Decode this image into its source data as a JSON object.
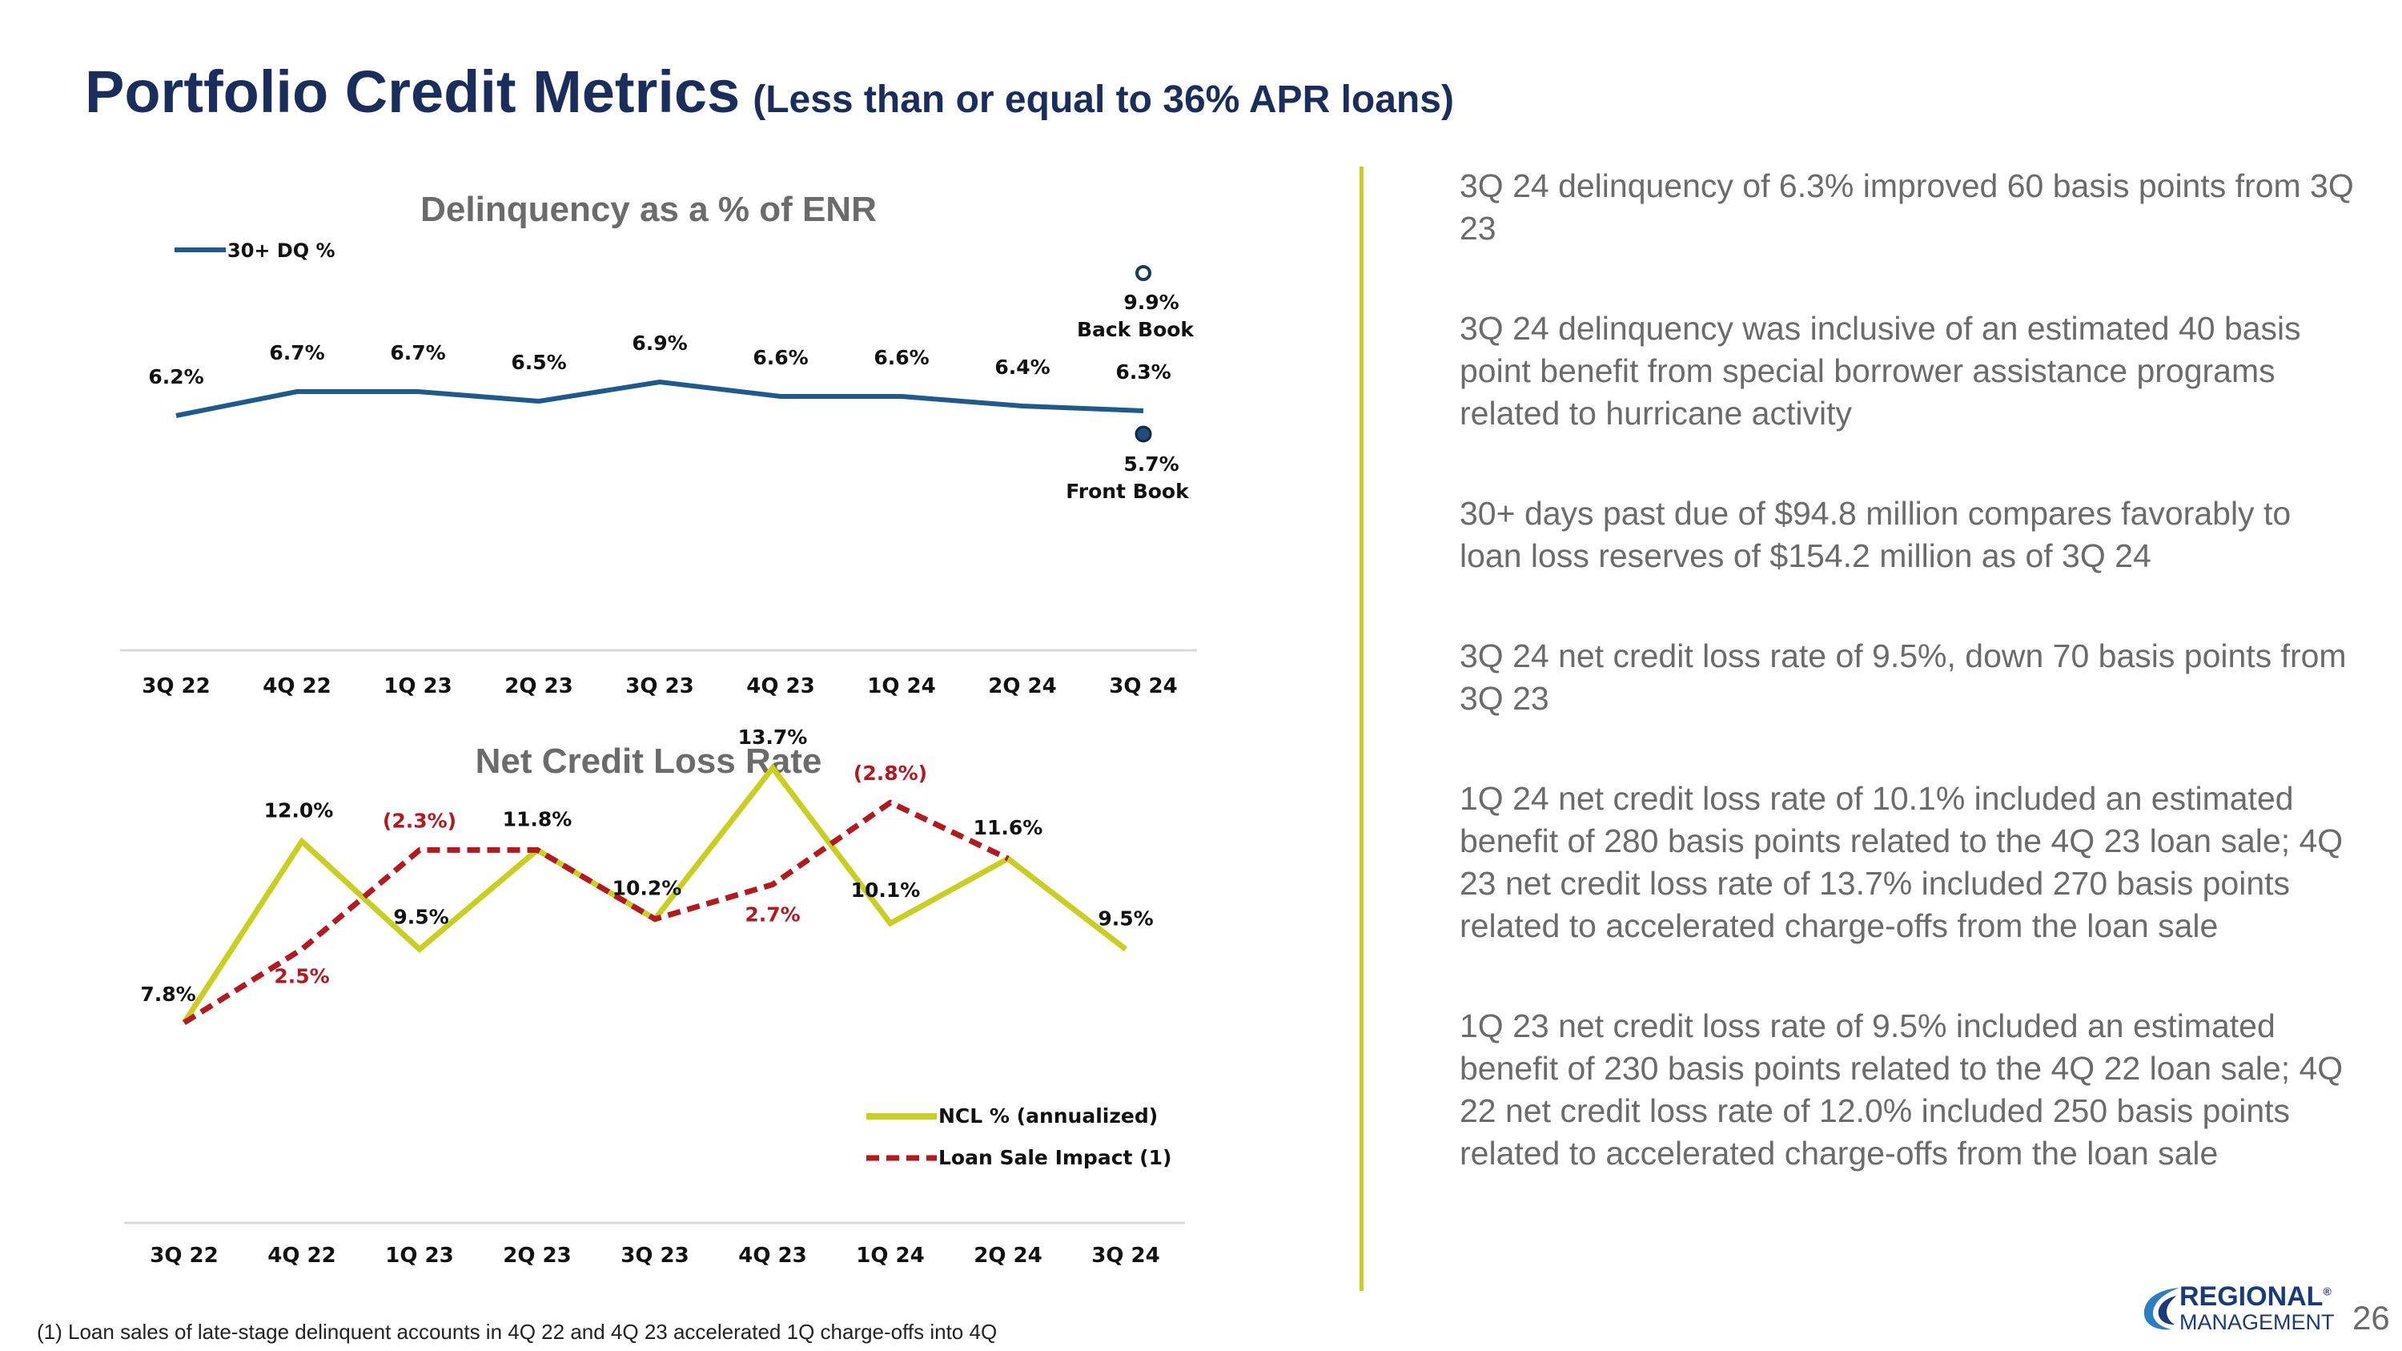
{
  "title": {
    "main": "Portfolio Credit Metrics",
    "sub": "(Less than or equal to 36% APR loans)"
  },
  "colors": {
    "navy": "#1b2d5b",
    "dq_line": "#1f5a8f",
    "ncl_line": "#c9cf1e",
    "loan_sale": "#b3191f",
    "divider": "#c9cf1e"
  },
  "chart_data": [
    {
      "type": "line",
      "title": "Delinquency as a % of ENR",
      "categories": [
        "3Q 22",
        "4Q 22",
        "1Q 23",
        "2Q 23",
        "3Q 23",
        "4Q 23",
        "1Q 24",
        "2Q 24",
        "3Q 24"
      ],
      "series": [
        {
          "name": "30+ DQ %",
          "values": [
            6.2,
            6.7,
            6.7,
            6.5,
            6.9,
            6.6,
            6.6,
            6.4,
            6.3
          ],
          "labels": [
            "6.2%",
            "6.7%",
            "6.7%",
            "6.5%",
            "6.9%",
            "6.6%",
            "6.6%",
            "6.4%",
            "6.3%"
          ]
        }
      ],
      "annotations": [
        {
          "category": "3Q 24",
          "value": 9.9,
          "value_label": "9.9%",
          "label": "Back Book",
          "marker": "hollow"
        },
        {
          "category": "3Q 24",
          "value": 5.7,
          "value_label": "5.7%",
          "label": "Front Book",
          "marker": "filled"
        }
      ],
      "legend": "top-left",
      "ylim": [
        0,
        12
      ]
    },
    {
      "type": "line",
      "title": "Net Credit Loss Rate",
      "categories": [
        "3Q 22",
        "4Q 22",
        "1Q 23",
        "2Q 23",
        "3Q 23",
        "4Q 23",
        "1Q 24",
        "2Q 24",
        "3Q 24"
      ],
      "series": [
        {
          "name": "NCL % (annualized)",
          "values": [
            7.8,
            12.0,
            9.5,
            11.8,
            10.2,
            13.7,
            10.1,
            11.6,
            9.5
          ],
          "labels": [
            "7.8%",
            "12.0%",
            "9.5%",
            "11.8%",
            "10.2%",
            "13.7%",
            "10.1%",
            "11.6%",
            "9.5%"
          ]
        },
        {
          "name": "Loan Sale Impact (1)",
          "values": [
            7.8,
            9.5,
            11.8,
            11.8,
            10.2,
            11.0,
            12.9,
            11.6,
            null
          ],
          "labels": [
            "",
            "2.5%",
            "(2.3%)",
            "",
            "",
            "2.7%",
            "(2.8%)",
            "",
            ""
          ]
        }
      ],
      "legend": "bottom-right",
      "ylim": [
        4,
        15
      ]
    }
  ],
  "bullets": [
    "3Q 24 delinquency of 6.3% improved 60 basis points from 3Q 23",
    "3Q 24 delinquency was inclusive of an estimated 40 basis point benefit from special borrower assistance programs related to hurricane activity",
    "30+ days past due of $94.8 million compares favorably to loan loss reserves of $154.2 million as of 3Q 24",
    "3Q 24 net credit loss rate of 9.5%, down 70 basis points from 3Q 23",
    "1Q 24 net credit loss rate of 10.1% included an estimated benefit of 280 basis points related to the 4Q 23 loan sale; 4Q 23 net credit loss rate of 13.7% included 270 basis points related to accelerated charge-offs from the loan sale",
    "1Q 23 net credit loss rate of 9.5% included an estimated benefit of 230 basis points related to the 4Q 22 loan sale; 4Q 22 net credit loss rate of 12.0% included 250 basis points related to accelerated charge-offs from the loan sale"
  ],
  "footnote": "(1) Loan sales of late-stage delinquent accounts in 4Q 22 and 4Q 23 accelerated 1Q charge-offs into 4Q",
  "logo": {
    "top": "REGIONAL",
    "bottom": "MANAGEMENT",
    "mark": "®"
  },
  "page_number": "26"
}
